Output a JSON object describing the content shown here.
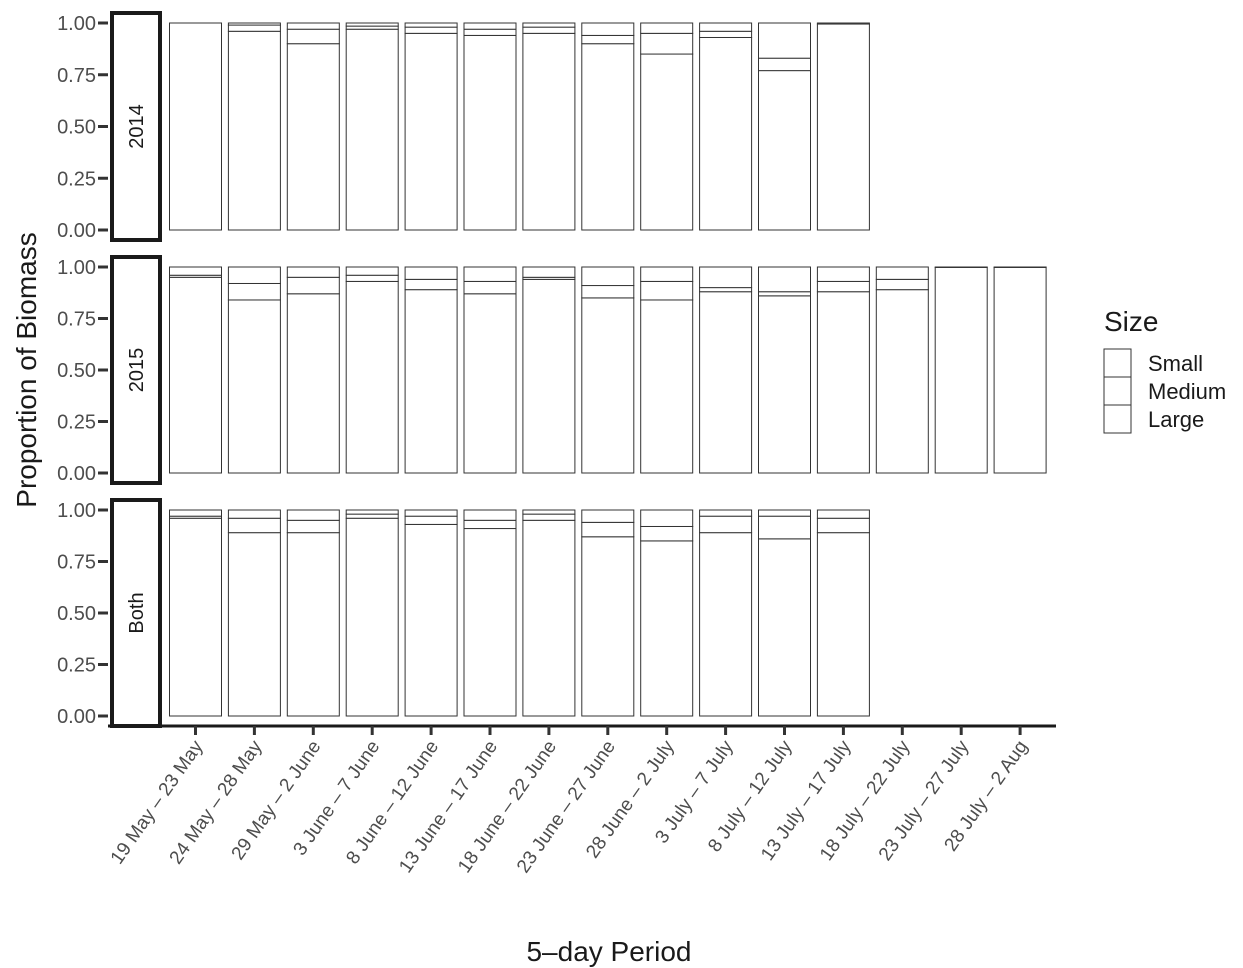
{
  "chart_data": {
    "type": "bar",
    "stacked": true,
    "xlabel": "5–day Period",
    "ylabel": "Proportion of Biomass",
    "ylim": [
      0,
      1
    ],
    "yticks": [
      "0.00",
      "0.25",
      "0.50",
      "0.75",
      "1.00"
    ],
    "categories": [
      "19 May – 23 May",
      "24 May – 28 May",
      "29 May – 2 June",
      "3 June – 7 June",
      "8 June – 12 June",
      "13 June – 17 June",
      "18 June – 22 June",
      "23 June – 27 June",
      "28 June – 2 July",
      "3 July – 7 July",
      "8 July – 12 July",
      "13 July – 17 July",
      "18 July – 22 July",
      "23 July – 27 July",
      "28 July – 2 Aug"
    ],
    "legend": {
      "title": "Size",
      "entries": [
        "Small",
        "Medium",
        "Large"
      ],
      "position": "right"
    },
    "grid": false,
    "facets": [
      {
        "label": "2014",
        "large": [
          1.0,
          0.96,
          0.9,
          0.97,
          0.95,
          0.94,
          0.95,
          0.9,
          0.85,
          0.93,
          0.77,
          0.995,
          null,
          null,
          null
        ],
        "medium": [
          0.0,
          0.03,
          0.07,
          0.015,
          0.03,
          0.03,
          0.03,
          0.04,
          0.1,
          0.03,
          0.06,
          0.0,
          null,
          null,
          null
        ],
        "small": [
          0.0,
          0.01,
          0.03,
          0.015,
          0.02,
          0.03,
          0.02,
          0.06,
          0.05,
          0.04,
          0.17,
          0.005,
          null,
          null,
          null
        ]
      },
      {
        "label": "2015",
        "large": [
          0.95,
          0.84,
          0.87,
          0.93,
          0.89,
          0.87,
          0.94,
          0.85,
          0.84,
          0.88,
          0.86,
          0.88,
          0.89,
          0.998,
          0.998
        ],
        "medium": [
          0.01,
          0.08,
          0.08,
          0.03,
          0.05,
          0.06,
          0.01,
          0.06,
          0.09,
          0.02,
          0.02,
          0.05,
          0.05,
          0.0,
          0.0
        ],
        "small": [
          0.04,
          0.08,
          0.05,
          0.04,
          0.06,
          0.07,
          0.05,
          0.09,
          0.07,
          0.1,
          0.12,
          0.07,
          0.06,
          0.002,
          0.002
        ]
      },
      {
        "label": "Both",
        "large": [
          0.96,
          0.89,
          0.89,
          0.96,
          0.93,
          0.91,
          0.95,
          0.87,
          0.85,
          0.89,
          0.86,
          0.89,
          null,
          null,
          null
        ],
        "medium": [
          0.01,
          0.07,
          0.06,
          0.02,
          0.04,
          0.04,
          0.03,
          0.07,
          0.07,
          0.08,
          0.11,
          0.07,
          null,
          null,
          null
        ],
        "small": [
          0.03,
          0.04,
          0.05,
          0.02,
          0.03,
          0.05,
          0.02,
          0.06,
          0.08,
          0.03,
          0.03,
          0.04,
          null,
          null,
          null
        ]
      }
    ]
  }
}
